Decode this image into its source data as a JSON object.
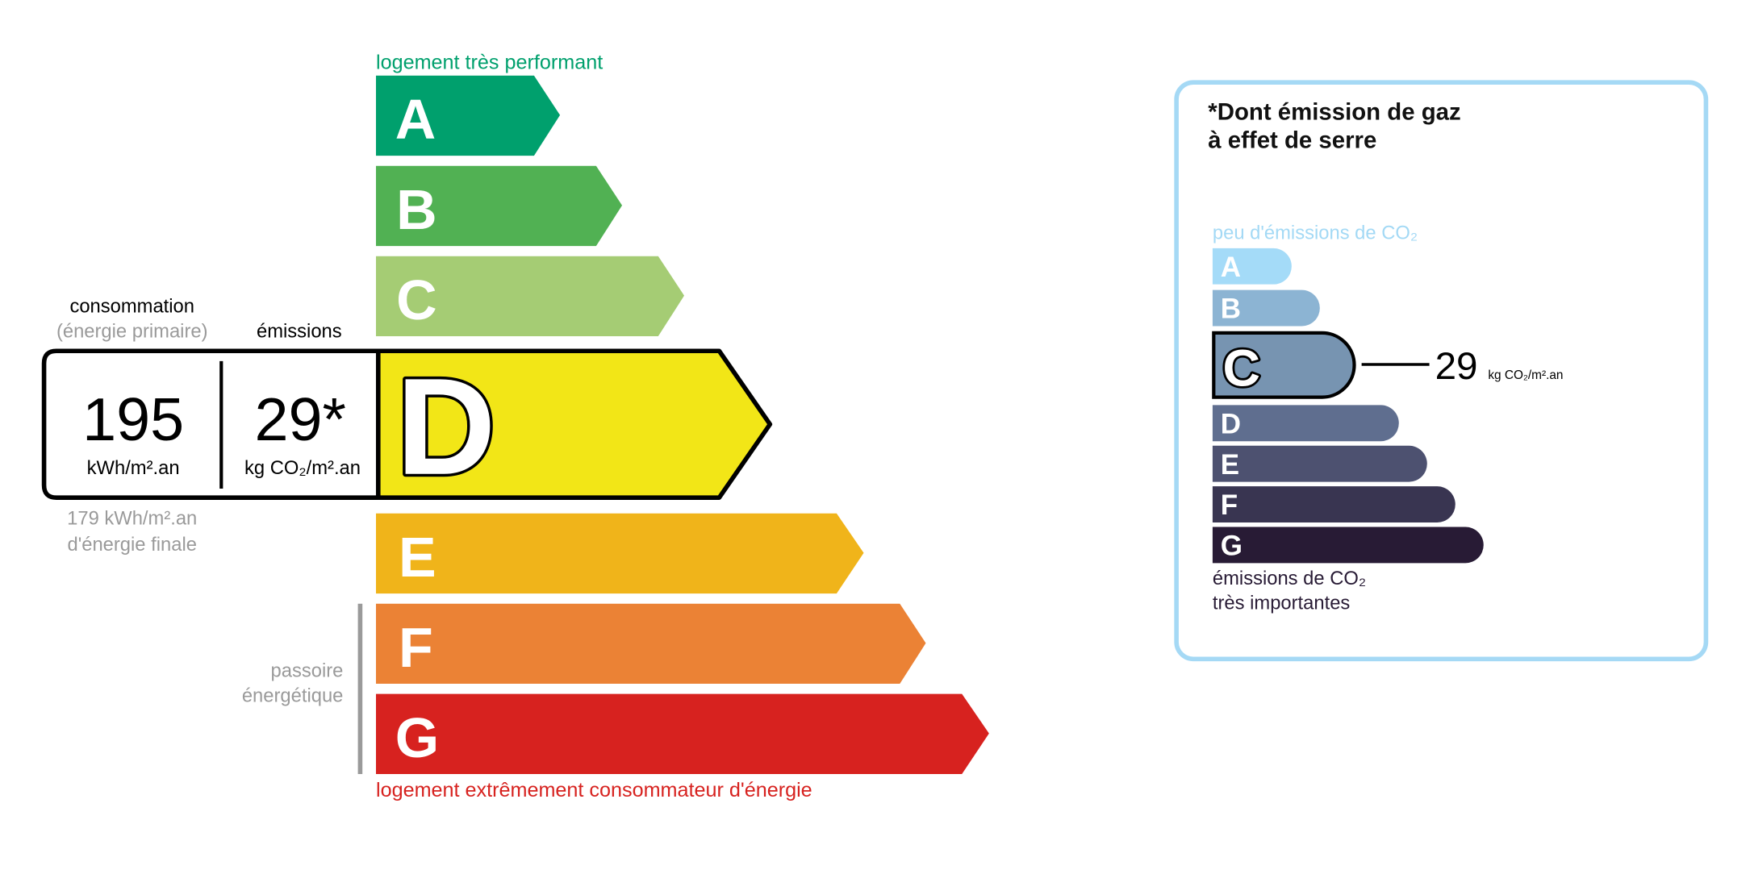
{
  "energy": {
    "top_label": "logement très performant",
    "bottom_label": "logement extrêmement consommateur d'énergie",
    "consumption_label": "consommation",
    "consumption_sub": "(énergie primaire)",
    "emissions_label": "émissions",
    "consumption_value": "195",
    "consumption_unit": "kWh/m².an",
    "emissions_value": "29*",
    "emissions_unit": "kg CO₂/m².an",
    "final_energy_value": "179 kWh/m².an",
    "final_energy_label": "d'énergie finale",
    "passoire_line1": "passoire",
    "passoire_line2": "énergétique",
    "current_class": "D",
    "classes": [
      {
        "letter": "A",
        "color": "#00a06d"
      },
      {
        "letter": "B",
        "color": "#51b153"
      },
      {
        "letter": "C",
        "color": "#a5cc74"
      },
      {
        "letter": "D",
        "color": "#f2e617"
      },
      {
        "letter": "E",
        "color": "#f0b41a"
      },
      {
        "letter": "F",
        "color": "#eb8235"
      },
      {
        "letter": "G",
        "color": "#d7221f"
      }
    ]
  },
  "ghg": {
    "title_line1": "*Dont émission de gaz",
    "title_line2": "à effet de serre",
    "top_label": "peu d'émissions de CO₂",
    "bottom_line1": "émissions de CO₂",
    "bottom_line2": "très importantes",
    "value": "29",
    "unit": "kg CO₂/m².an",
    "current_class": "C",
    "border_color": "#a5d9f5",
    "classes": [
      {
        "letter": "A",
        "color": "#a4dbf8"
      },
      {
        "letter": "B",
        "color": "#8cb4d3"
      },
      {
        "letter": "C",
        "color": "#7794b1"
      },
      {
        "letter": "D",
        "color": "#5f6e8f"
      },
      {
        "letter": "E",
        "color": "#4d5170"
      },
      {
        "letter": "F",
        "color": "#393551"
      },
      {
        "letter": "G",
        "color": "#281b35"
      }
    ]
  }
}
